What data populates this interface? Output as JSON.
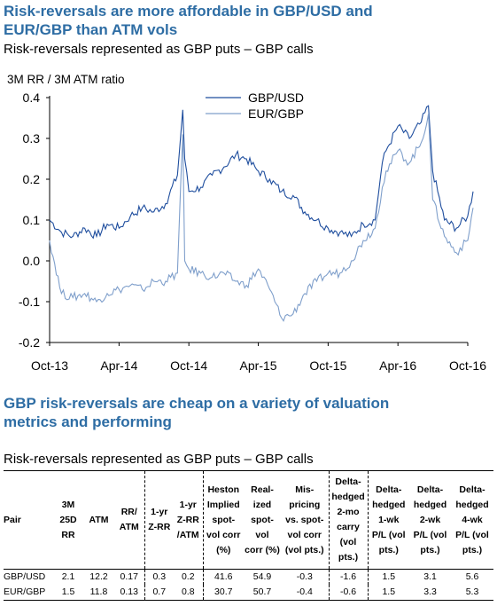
{
  "title1_line1": "Risk-reversals are more affordable in GBP/USD and",
  "title1_line2": "EUR/GBP than ATM vols",
  "subtitle1": "Risk-reversals represented as GBP puts – GBP calls",
  "title2_line1": "GBP risk-reversals are cheap on a variety of valuation",
  "title2_line2": "metrics and performing",
  "subtitle2": "Risk-reversals represented as GBP puts – GBP calls",
  "chart_data": {
    "type": "line",
    "title": "",
    "ylabel": "3M RR / 3M ATM ratio",
    "xlabel": "",
    "ylim": [
      -0.2,
      0.4
    ],
    "xlim": [
      "2013-10",
      "2016-10"
    ],
    "yticks": [
      "0.4",
      "0.3",
      "0.2",
      "0.1",
      "0.0",
      "-0.1",
      "-0.2"
    ],
    "xticks": [
      "Oct-13",
      "Apr-14",
      "Oct-14",
      "Apr-15",
      "Oct-15",
      "Apr-16",
      "Oct-16"
    ],
    "legend_position": "top-center",
    "grid": false,
    "colors": {
      "GBP/USD": "#1F4E9E",
      "EUR/GBP": "#7F9FCB"
    },
    "series": [
      {
        "name": "GBP/USD",
        "x": [
          "2013-10-01",
          "2013-11-01",
          "2013-12-01",
          "2014-01-01",
          "2014-02-01",
          "2014-03-01",
          "2014-04-01",
          "2014-05-01",
          "2014-06-01",
          "2014-07-01",
          "2014-08-01",
          "2014-09-01",
          "2014-09-15",
          "2014-09-20",
          "2014-10-01",
          "2014-11-01",
          "2014-12-01",
          "2015-01-01",
          "2015-02-01",
          "2015-03-01",
          "2015-04-01",
          "2015-05-01",
          "2015-06-01",
          "2015-07-01",
          "2015-08-01",
          "2015-09-01",
          "2015-10-01",
          "2015-11-01",
          "2015-12-01",
          "2016-01-01",
          "2016-02-01",
          "2016-02-20",
          "2016-03-01",
          "2016-04-01",
          "2016-05-01",
          "2016-06-01",
          "2016-06-20",
          "2016-07-01",
          "2016-08-01",
          "2016-09-01",
          "2016-10-01",
          "2016-10-15"
        ],
        "values": [
          0.1,
          0.07,
          0.06,
          0.08,
          0.06,
          0.09,
          0.08,
          0.11,
          0.13,
          0.12,
          0.14,
          0.21,
          0.37,
          0.25,
          0.17,
          0.18,
          0.21,
          0.23,
          0.26,
          0.25,
          0.22,
          0.2,
          0.17,
          0.16,
          0.12,
          0.1,
          0.08,
          0.07,
          0.06,
          0.09,
          0.1,
          0.24,
          0.27,
          0.33,
          0.3,
          0.34,
          0.38,
          0.22,
          0.1,
          0.08,
          0.11,
          0.17
        ]
      },
      {
        "name": "EUR/GBP",
        "x": [
          "2013-10-01",
          "2013-11-01",
          "2013-12-01",
          "2014-01-01",
          "2014-02-01",
          "2014-03-01",
          "2014-04-01",
          "2014-05-01",
          "2014-06-01",
          "2014-07-01",
          "2014-08-01",
          "2014-09-01",
          "2014-09-15",
          "2014-09-20",
          "2014-10-01",
          "2014-11-01",
          "2014-12-01",
          "2015-01-01",
          "2015-02-01",
          "2015-03-01",
          "2015-04-01",
          "2015-05-01",
          "2015-06-01",
          "2015-07-01",
          "2015-08-01",
          "2015-09-01",
          "2015-10-01",
          "2015-11-01",
          "2015-12-01",
          "2016-01-01",
          "2016-02-01",
          "2016-02-20",
          "2016-03-01",
          "2016-04-01",
          "2016-05-01",
          "2016-06-01",
          "2016-06-20",
          "2016-07-01",
          "2016-08-01",
          "2016-09-01",
          "2016-10-01",
          "2016-10-15"
        ],
        "values": [
          0.05,
          -0.08,
          -0.09,
          -0.08,
          -0.1,
          -0.08,
          -0.07,
          -0.06,
          -0.07,
          -0.05,
          -0.05,
          -0.03,
          0.31,
          0.0,
          -0.02,
          -0.03,
          -0.04,
          -0.03,
          -0.05,
          -0.06,
          -0.02,
          -0.07,
          -0.14,
          -0.13,
          -0.08,
          -0.05,
          -0.03,
          -0.03,
          0.0,
          0.05,
          0.08,
          0.18,
          0.22,
          0.27,
          0.24,
          0.29,
          0.36,
          0.15,
          0.06,
          0.02,
          0.05,
          0.13
        ]
      }
    ]
  },
  "table": {
    "headers": [
      {
        "l1": "Pair",
        "l2": "",
        "l3": "",
        "l4": "",
        "l5": ""
      },
      {
        "l1": "3M",
        "l2": "25D",
        "l3": "RR",
        "l4": "",
        "l5": ""
      },
      {
        "l1": "ATM",
        "l2": "",
        "l3": "",
        "l4": "",
        "l5": ""
      },
      {
        "l1": "RR/",
        "l2": "ATM",
        "l3": "",
        "l4": "",
        "l5": ""
      },
      {
        "l1": "1-yr",
        "l2": "Z-RR",
        "l3": "",
        "l4": "",
        "l5": ""
      },
      {
        "l1": "1-yr",
        "l2": "Z-RR",
        "l3": "/ATM",
        "l4": "",
        "l5": ""
      },
      {
        "l1": "Heston",
        "l2": "Implied",
        "l3": "spot-",
        "l4": "vol corr",
        "l5": "(%)"
      },
      {
        "l1": "Real-",
        "l2": "ized",
        "l3": "spot-",
        "l4": "vol",
        "l5": "corr (%)"
      },
      {
        "l1": "Mis-",
        "l2": "pricing",
        "l3": "vs. spot-",
        "l4": "vol corr",
        "l5": "(vol pts.)"
      },
      {
        "l1": "Delta-",
        "l2": "hedged",
        "l3": "2-mo",
        "l4": "carry",
        "l5": "(vol pts.)"
      },
      {
        "l1": "Delta-",
        "l2": "hedged",
        "l3": "1-wk",
        "l4": "P/L (vol",
        "l5": "pts.)"
      },
      {
        "l1": "Delta-",
        "l2": "hedged",
        "l3": "2-wk",
        "l4": "P/L (vol",
        "l5": "pts.)"
      },
      {
        "l1": "Delta-",
        "l2": "hedged",
        "l3": "4-wk",
        "l4": "P/L (vol",
        "l5": "pts.)"
      }
    ],
    "rows": [
      [
        "GBP/USD",
        "2.1",
        "12.2",
        "0.17",
        "0.3",
        "0.2",
        "41.6",
        "54.9",
        "-0.3",
        "-1.6",
        "1.5",
        "3.1",
        "5.6"
      ],
      [
        "EUR/GBP",
        "1.5",
        "11.8",
        "0.13",
        "0.7",
        "0.8",
        "30.7",
        "50.7",
        "-0.4",
        "-0.6",
        "1.5",
        "3.3",
        "5.3"
      ]
    ]
  }
}
